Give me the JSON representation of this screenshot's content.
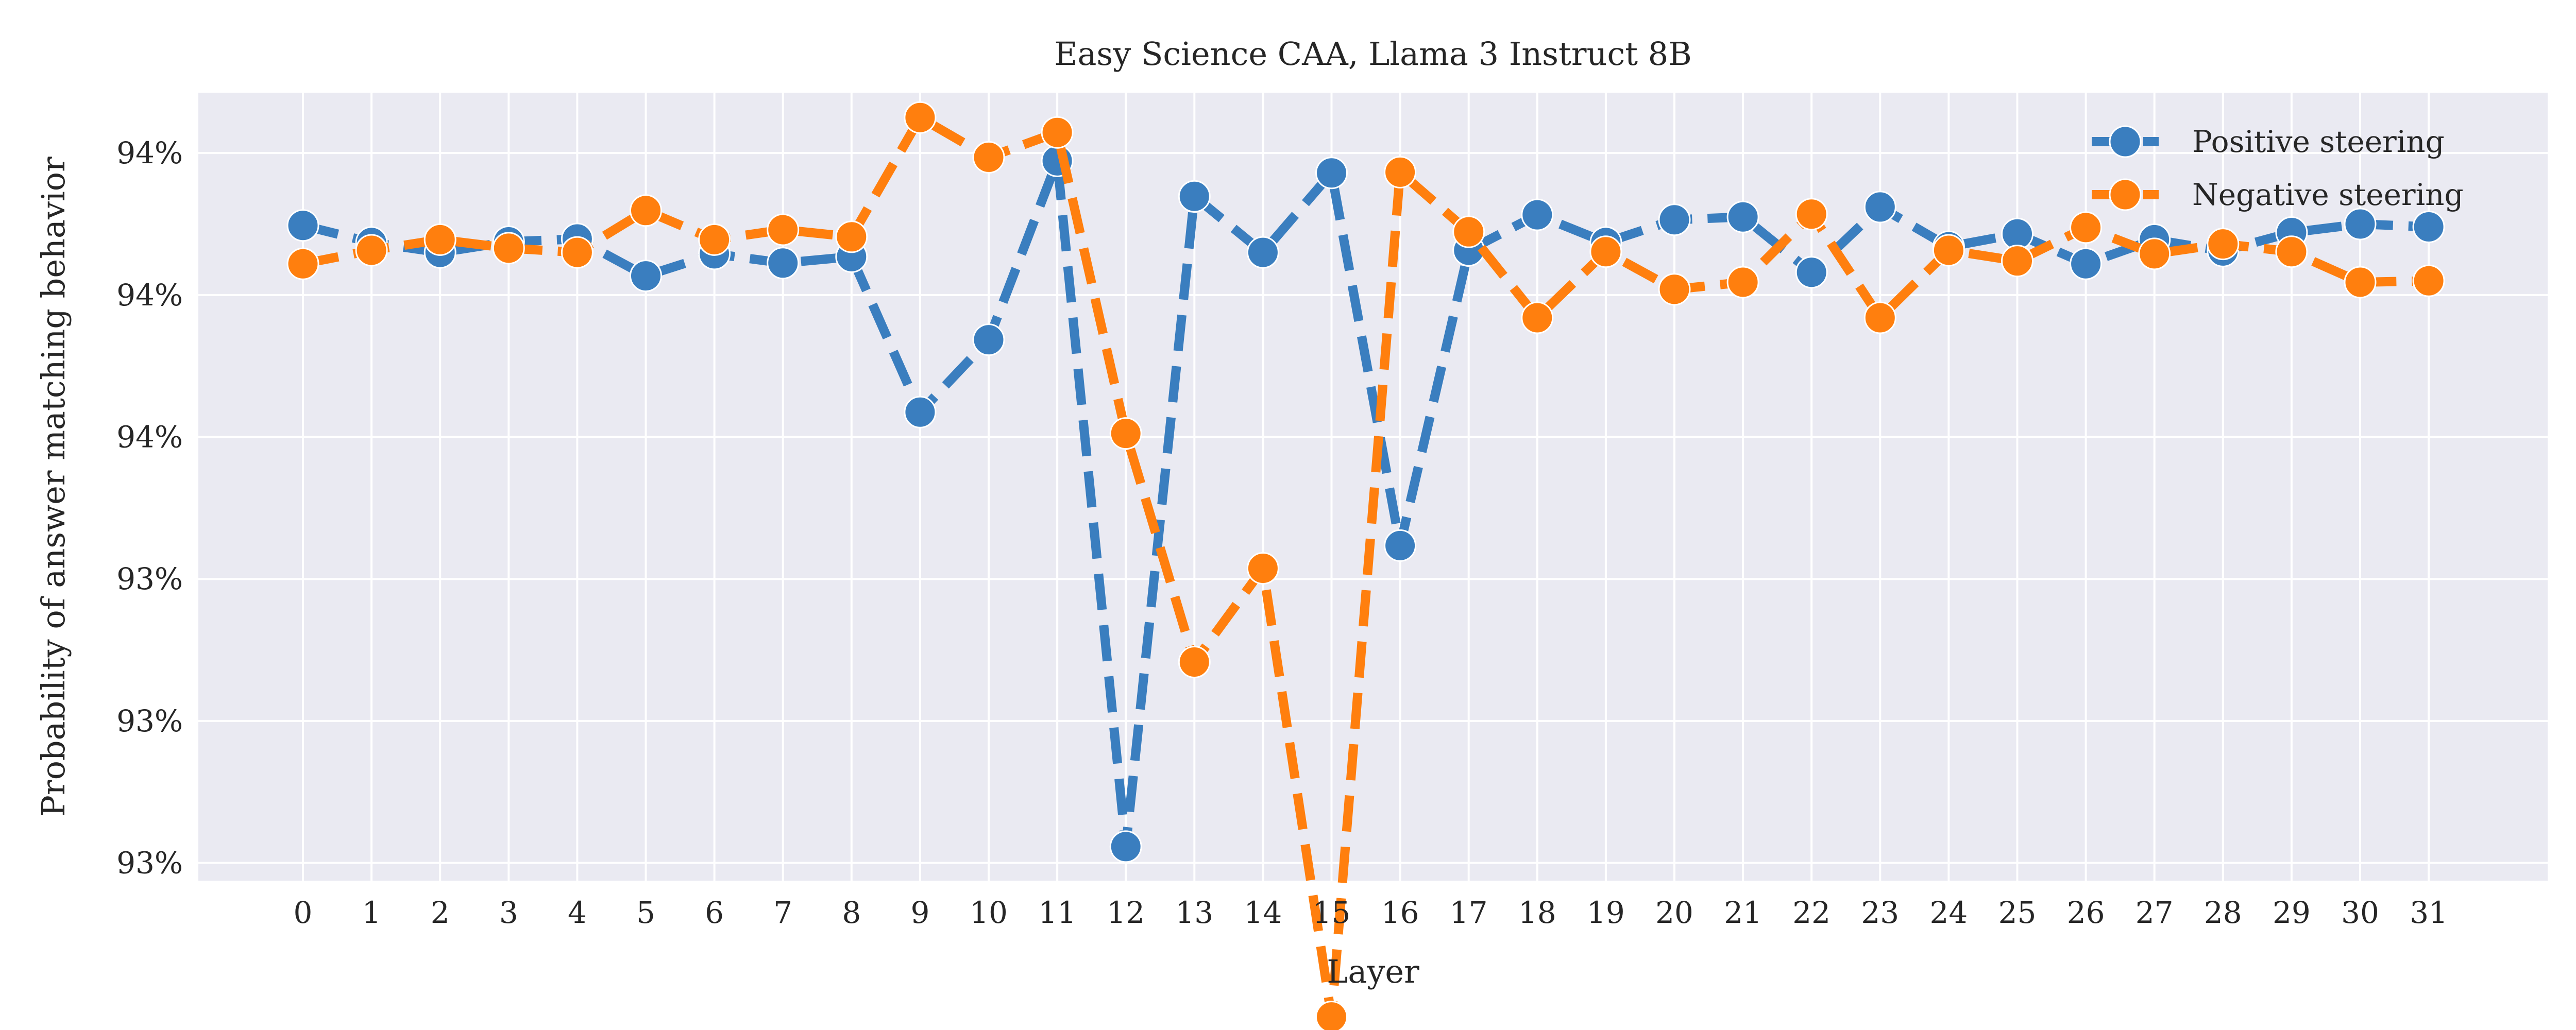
{
  "chart_data": {
    "type": "line",
    "title": "Easy Science CAA, Llama 3 Instruct 8B",
    "xlabel": "Layer",
    "ylabel": "Probability of answer matching behavior",
    "x": [
      0,
      1,
      2,
      3,
      4,
      5,
      6,
      7,
      8,
      9,
      10,
      11,
      12,
      13,
      14,
      15,
      16,
      17,
      18,
      19,
      20,
      21,
      22,
      23,
      24,
      25,
      26,
      27,
      28,
      29,
      30,
      31
    ],
    "y_ticks": [
      {
        "value": 0.931,
        "label": "93%"
      },
      {
        "value": 0.933,
        "label": "93%"
      },
      {
        "value": 0.935,
        "label": "93%"
      },
      {
        "value": 0.937,
        "label": "94%"
      },
      {
        "value": 0.939,
        "label": "94%"
      },
      {
        "value": 0.941,
        "label": "94%"
      }
    ],
    "ylim": [
      0.93075,
      0.94185
    ],
    "grid": true,
    "legend_position": "top-right",
    "series": [
      {
        "name": "Positive steering",
        "color": "#3a7ebf",
        "line_style": "dashed",
        "marker": "circle",
        "values": [
          0.93998,
          0.93974,
          0.9396,
          0.93975,
          0.93979,
          0.93927,
          0.93958,
          0.93945,
          0.93954,
          0.93735,
          0.93837,
          0.94089,
          0.93123,
          0.94039,
          0.9396,
          0.94072,
          0.93547,
          0.93963,
          0.94013,
          0.93974,
          0.94006,
          0.9401,
          0.93932,
          0.94024,
          0.93968,
          0.93986,
          0.93944,
          0.93978,
          0.93962,
          0.93988,
          0.94,
          0.93996
        ]
      },
      {
        "name": "Negative steering",
        "color": "#ff7f0e",
        "line_style": "dashed",
        "marker": "circle",
        "values": [
          0.93944,
          0.93963,
          0.93978,
          0.93966,
          0.9396,
          0.94019,
          0.93978,
          0.93992,
          0.93982,
          0.9415,
          0.94094,
          0.94129,
          0.93705,
          0.93383,
          0.93515,
          0.92883,
          0.94073,
          0.93989,
          0.93868,
          0.93961,
          0.93908,
          0.93918,
          0.94014,
          0.93868,
          0.93963,
          0.93948,
          0.93995,
          0.93958,
          0.93972,
          0.93961,
          0.93918,
          0.9392
        ]
      }
    ]
  }
}
